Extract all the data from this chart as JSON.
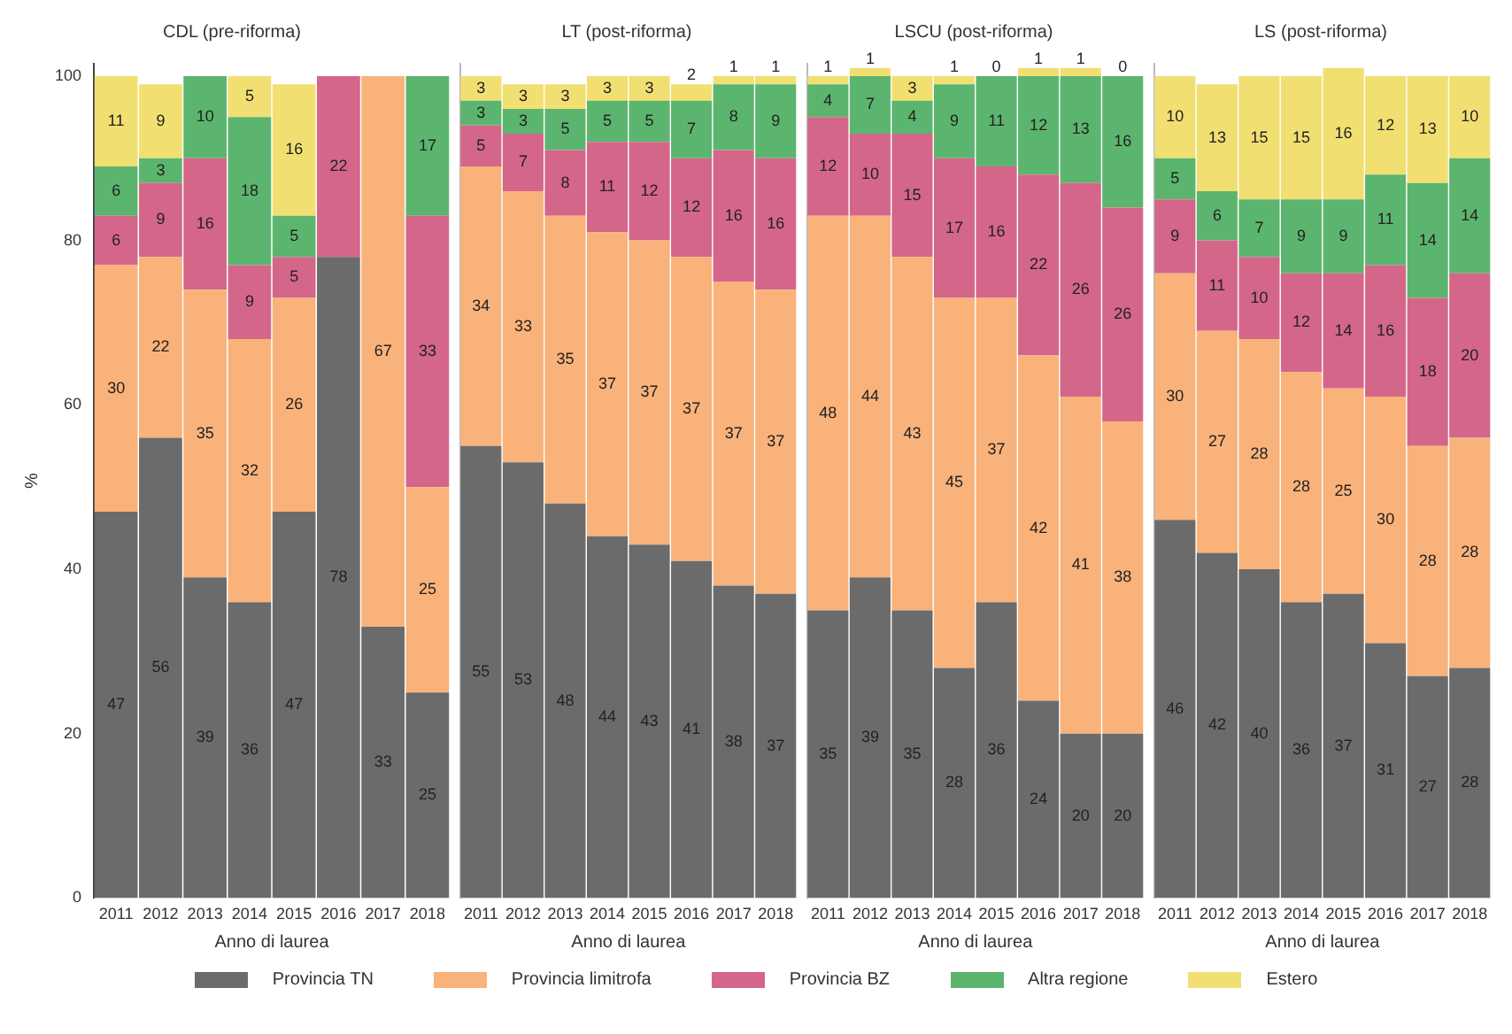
{
  "chart_data": [
    {
      "type": "bar",
      "stacked": true,
      "title": "CDL (pre-riforma)",
      "xlabel": "Anno di laurea",
      "ylabel": "%",
      "categories": [
        "2011",
        "2012",
        "2013",
        "2014",
        "2015",
        "2016",
        "2017",
        "2018"
      ],
      "ylim": [
        0,
        101.5
      ],
      "yticks": [
        0,
        20,
        40,
        60,
        80,
        100
      ],
      "grid": false,
      "legend": "bottom",
      "data_labels": true,
      "series": [
        {
          "name": "Provincia TN",
          "color": "#6b6b6b",
          "values": [
            47,
            56,
            39,
            36,
            47,
            78,
            33,
            25
          ]
        },
        {
          "name": "Provincia limitrofa",
          "color": "#f9b27a",
          "values": [
            30,
            22,
            35,
            32,
            26,
            null,
            67,
            25
          ]
        },
        {
          "name": "Provincia BZ",
          "color": "#d4668a",
          "values": [
            6,
            9,
            16,
            9,
            5,
            22,
            null,
            33
          ]
        },
        {
          "name": "Altra regione",
          "color": "#5cb56e",
          "values": [
            6,
            3,
            10,
            18,
            5,
            null,
            null,
            17
          ]
        },
        {
          "name": "Estero",
          "color": "#f2df72",
          "values": [
            11,
            9,
            null,
            5,
            16,
            null,
            null,
            null
          ]
        }
      ]
    },
    {
      "type": "bar",
      "stacked": true,
      "title": "LT (post-riforma)",
      "xlabel": "Anno di laurea",
      "categories": [
        "2011",
        "2012",
        "2013",
        "2014",
        "2015",
        "2016",
        "2017",
        "2018"
      ],
      "ylim": [
        0,
        101.5
      ],
      "yticks": [
        0,
        20,
        40,
        60,
        80,
        100
      ],
      "tick_labels": "x",
      "grid": false,
      "data_labels": true,
      "series": [
        {
          "color": "#6b6b6b",
          "values": [
            55,
            53,
            48,
            44,
            43,
            41,
            38,
            37
          ]
        },
        {
          "color": "#f9b27a",
          "values": [
            34,
            33,
            35,
            37,
            37,
            37,
            37,
            37
          ]
        },
        {
          "color": "#d4668a",
          "values": [
            5,
            7,
            8,
            11,
            12,
            12,
            16,
            16
          ]
        },
        {
          "color": "#5cb56e",
          "values": [
            3,
            3,
            5,
            5,
            5,
            7,
            8,
            9
          ]
        },
        {
          "color": "#f2df72",
          "values": [
            3,
            3,
            3,
            3,
            3,
            2,
            1,
            1
          ]
        }
      ]
    },
    {
      "type": "bar",
      "stacked": true,
      "title": "LSCU (post-riforma)",
      "xlabel": "Anno di laurea",
      "categories": [
        "2011",
        "2012",
        "2013",
        "2014",
        "2015",
        "2016",
        "2017",
        "2018"
      ],
      "ylim": [
        0,
        101.5
      ],
      "yticks": [
        0,
        20,
        40,
        60,
        80,
        100
      ],
      "tick_labels": "x",
      "grid": false,
      "data_labels": true,
      "series": [
        {
          "color": "#6b6b6b",
          "values": [
            35,
            39,
            35,
            28,
            36,
            24,
            20,
            20
          ]
        },
        {
          "color": "#f9b27a",
          "values": [
            48,
            44,
            43,
            45,
            37,
            42,
            41,
            38
          ]
        },
        {
          "color": "#d4668a",
          "values": [
            12,
            10,
            15,
            17,
            16,
            22,
            26,
            26
          ]
        },
        {
          "color": "#5cb56e",
          "values": [
            4,
            7,
            4,
            9,
            11,
            12,
            13,
            16
          ]
        },
        {
          "color": "#f2df72",
          "values": [
            1,
            1,
            3,
            1,
            0,
            1,
            1,
            0
          ]
        }
      ]
    },
    {
      "type": "bar",
      "stacked": true,
      "title": "LS (post-riforma)",
      "xlabel": "Anno di laurea",
      "categories": [
        "2011",
        "2012",
        "2013",
        "2014",
        "2015",
        "2016",
        "2017",
        "2018"
      ],
      "ylim": [
        0,
        101.5
      ],
      "yticks": [
        0,
        20,
        40,
        60,
        80,
        100
      ],
      "tick_labels": "x",
      "grid": false,
      "data_labels": true,
      "series": [
        {
          "color": "#6b6b6b",
          "values": [
            46,
            42,
            40,
            36,
            37,
            31,
            27,
            28
          ]
        },
        {
          "color": "#f9b27a",
          "values": [
            30,
            27,
            28,
            28,
            25,
            30,
            28,
            28
          ]
        },
        {
          "color": "#d4668a",
          "values": [
            9,
            11,
            10,
            12,
            14,
            16,
            18,
            20
          ]
        },
        {
          "color": "#5cb56e",
          "values": [
            5,
            6,
            7,
            9,
            9,
            11,
            14,
            14
          ]
        },
        {
          "color": "#f2df72",
          "values": [
            10,
            13,
            15,
            15,
            16,
            12,
            13,
            10
          ]
        }
      ]
    }
  ]
}
